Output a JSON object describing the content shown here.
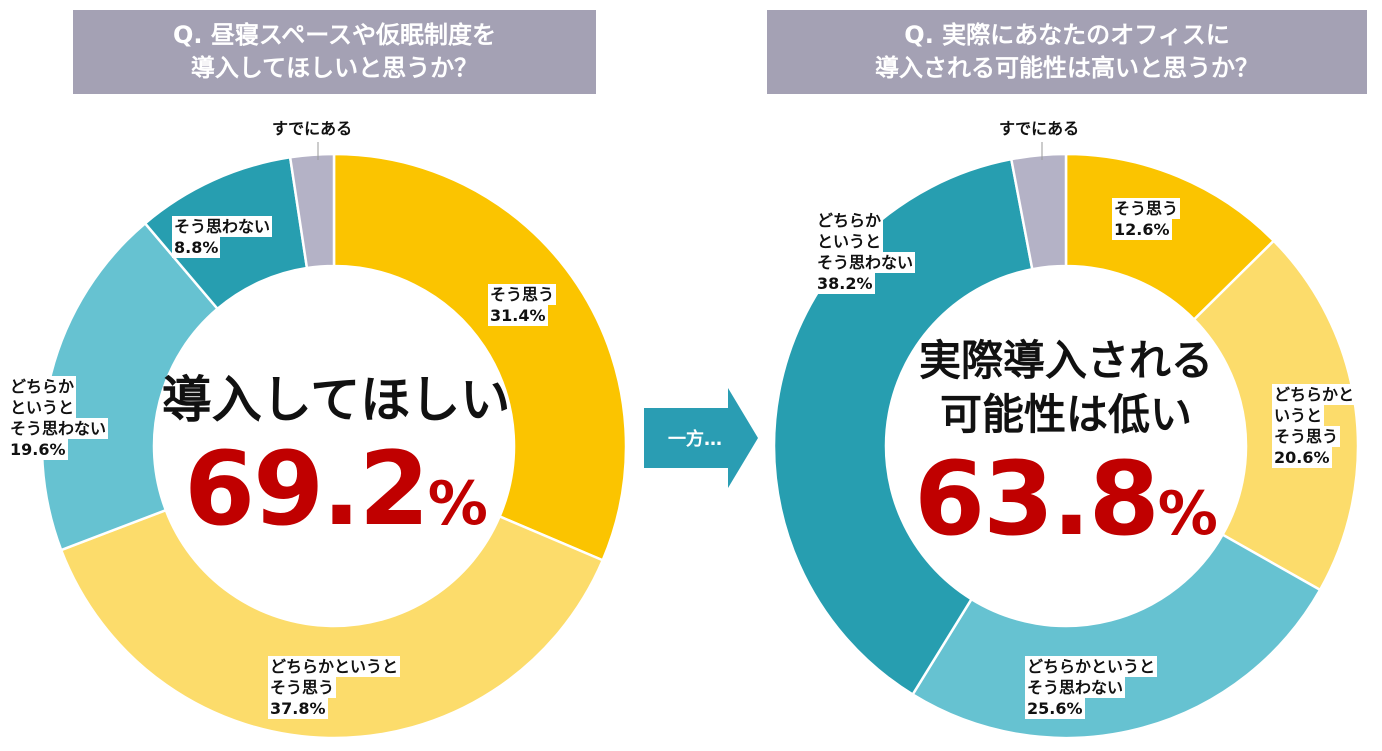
{
  "colors": {
    "header_bg": "#a4a1b4",
    "accent_red": "#c00000",
    "arrow": "#2a9db3",
    "soo_omou": "#fbc400",
    "dochiraka_soo_omou": "#fcdc6b",
    "dochiraka_soo_omowanai": "#66c2d1",
    "soo_omowanai": "#279eb0",
    "sude_ni_aru": "#b4b2c6"
  },
  "arrow_label": "一方…",
  "chart_data": [
    {
      "type": "pie",
      "variant": "donut",
      "title_lines": [
        "Q. 昼寝スペースや仮眠制度を",
        "導入してほしいと思うか？"
      ],
      "center_text": "導入してほしい",
      "center_value": "69.2",
      "center_unit": "%",
      "slices": [
        {
          "label_lines": [
            "そう思う"
          ],
          "value_text": "31.4%",
          "value": 31.4,
          "color": "#fbc400"
        },
        {
          "label_lines": [
            "どちらかというと",
            "そう思う"
          ],
          "value_text": "37.8%",
          "value": 37.8,
          "color": "#fcdc6b"
        },
        {
          "label_lines": [
            "どちらか",
            "というと",
            "そう思わない"
          ],
          "value_text": "19.6%",
          "value": 19.6,
          "color": "#66c2d1"
        },
        {
          "label_lines": [
            "そう思わない"
          ],
          "value_text": "8.8%",
          "value": 8.8,
          "color": "#279eb0"
        },
        {
          "label_lines": [
            "すでにある"
          ],
          "value_text": "",
          "value": 2.4,
          "color": "#b4b2c6"
        }
      ]
    },
    {
      "type": "pie",
      "variant": "donut",
      "title_lines": [
        "Q. 実際にあなたのオフィスに",
        "導入される可能性は高いと思うか？"
      ],
      "center_text_lines": [
        "実際導入される",
        "可能性は低い"
      ],
      "center_value": "63.8",
      "center_unit": "%",
      "slices": [
        {
          "label_lines": [
            "そう思う"
          ],
          "value_text": "12.6%",
          "value": 12.6,
          "color": "#fbc400"
        },
        {
          "label_lines": [
            "どちらかと",
            "いうと",
            "そう思う"
          ],
          "value_text": "20.6%",
          "value": 20.6,
          "color": "#fcdc6b"
        },
        {
          "label_lines": [
            "どちらかというと",
            "そう思わない"
          ],
          "value_text": "25.6%",
          "value": 25.6,
          "color": "#66c2d1"
        },
        {
          "label_lines": [
            "どちらか",
            "というと",
            "そう思わない"
          ],
          "value_text": "38.2%",
          "value": 38.2,
          "color": "#279eb0"
        },
        {
          "label_lines": [
            "すでにある"
          ],
          "value_text": "",
          "value": 3.0,
          "color": "#b4b2c6"
        }
      ]
    }
  ]
}
